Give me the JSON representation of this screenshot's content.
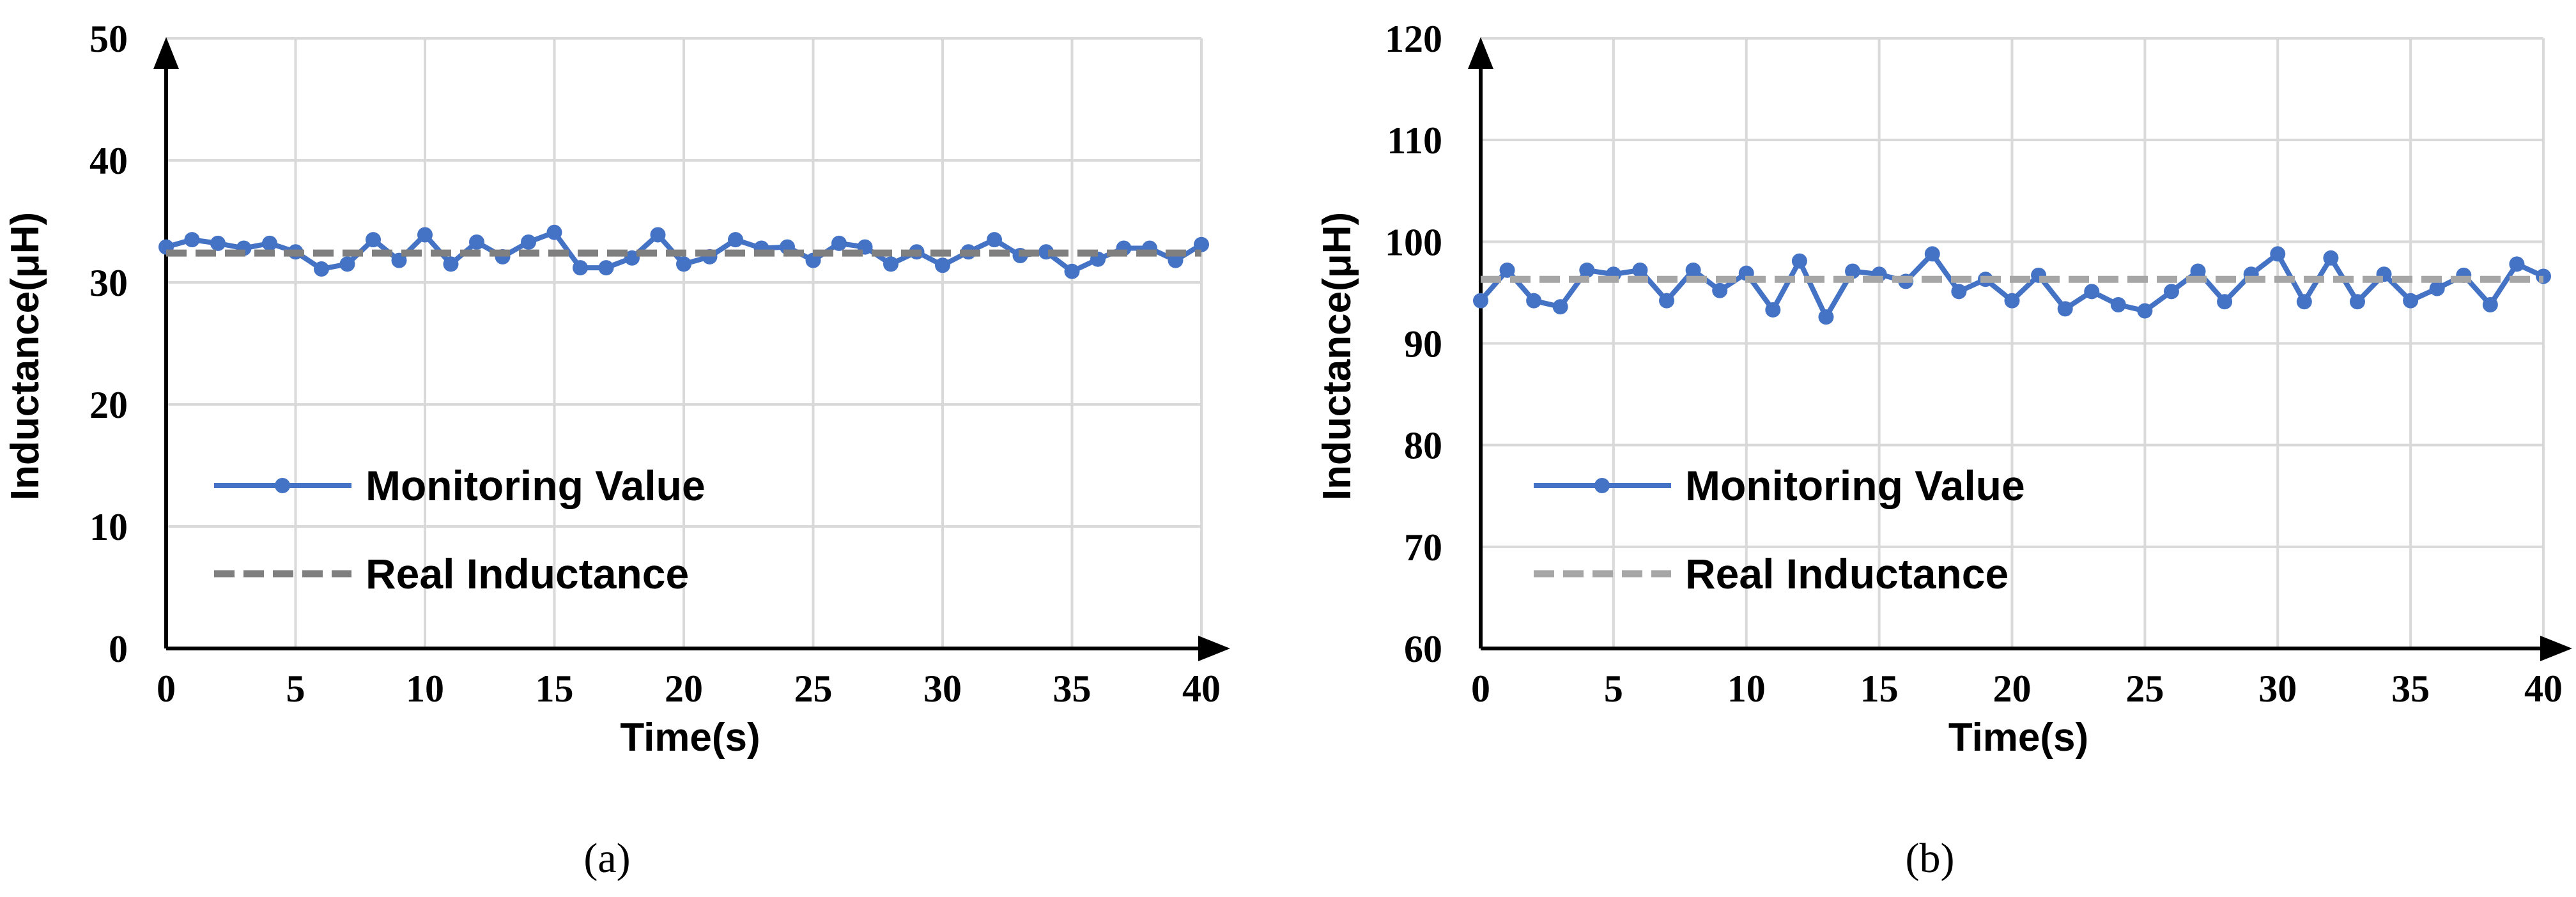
{
  "chart_data": [
    {
      "type": "line",
      "caption": "(a)",
      "xlabel": "Time(s)",
      "ylabel": "Inductance(μH)",
      "xlim": [
        0,
        40
      ],
      "ylim": [
        0,
        50
      ],
      "xticks": [
        0,
        5,
        10,
        15,
        20,
        25,
        30,
        35,
        40
      ],
      "yticks": [
        0,
        10,
        20,
        30,
        40,
        50
      ],
      "grid": true,
      "legend_placement": "left",
      "series": [
        {
          "name": "Monitoring Value",
          "color": "#4472c4",
          "style": "solid-markers",
          "x": [
            0,
            1,
            2,
            3,
            4,
            5,
            6,
            7,
            8,
            9,
            10,
            11,
            12,
            13,
            14,
            15,
            16,
            17,
            18,
            19,
            20,
            21,
            22,
            23,
            24,
            25,
            26,
            27,
            28,
            29,
            30,
            31,
            32,
            33,
            34,
            35,
            36,
            37,
            38,
            39,
            40
          ],
          "values": [
            32.9,
            33.5,
            33.2,
            32.8,
            33.2,
            32.5,
            31.1,
            31.5,
            33.5,
            31.8,
            33.9,
            31.5,
            33.3,
            32.1,
            33.3,
            34.1,
            31.2,
            31.2,
            32.0,
            33.9,
            31.5,
            32.1,
            33.5,
            32.8,
            32.9,
            31.8,
            33.2,
            32.9,
            31.5,
            32.5,
            31.4,
            32.5,
            33.5,
            32.2,
            32.5,
            30.9,
            31.9,
            32.8,
            32.8,
            31.8,
            33.1
          ]
        },
        {
          "name": "Real Inductance",
          "color": "#7f7f7f",
          "style": "dashed",
          "x": [
            0,
            40
          ],
          "values": [
            32.4,
            32.4
          ]
        }
      ]
    },
    {
      "type": "line",
      "caption": "(b)",
      "xlabel": "Time(s)",
      "ylabel": "Inductance(μH)",
      "xlim": [
        0,
        40
      ],
      "ylim": [
        60,
        120
      ],
      "xticks": [
        0,
        5,
        10,
        15,
        20,
        25,
        30,
        35,
        40
      ],
      "yticks": [
        60,
        70,
        80,
        90,
        100,
        110,
        120
      ],
      "grid": true,
      "legend_placement": "left",
      "series": [
        {
          "name": "Monitoring Value",
          "color": "#4472c4",
          "style": "solid-markers",
          "x": [
            0,
            1,
            2,
            3,
            4,
            5,
            6,
            7,
            8,
            9,
            10,
            11,
            12,
            13,
            14,
            15,
            16,
            17,
            18,
            19,
            20,
            21,
            22,
            23,
            24,
            25,
            26,
            27,
            28,
            29,
            30,
            31,
            32,
            33,
            34,
            35,
            36,
            37,
            38,
            39,
            40
          ],
          "values": [
            94.2,
            97.2,
            94.2,
            93.6,
            97.2,
            96.8,
            97.2,
            94.2,
            97.2,
            95.2,
            96.9,
            93.3,
            98.1,
            92.6,
            97.1,
            96.8,
            96.1,
            98.8,
            95.1,
            96.3,
            94.2,
            96.7,
            93.4,
            95.1,
            93.8,
            93.2,
            95.1,
            97.1,
            94.1,
            96.8,
            98.8,
            94.1,
            98.4,
            94.1,
            96.8,
            94.2,
            95.4,
            96.7,
            93.8,
            97.8,
            96.6
          ]
        },
        {
          "name": "Real Inductance",
          "color": "#a6a6a6",
          "style": "dashed",
          "x": [
            0,
            40
          ],
          "values": [
            96.3,
            96.3
          ]
        }
      ]
    }
  ]
}
